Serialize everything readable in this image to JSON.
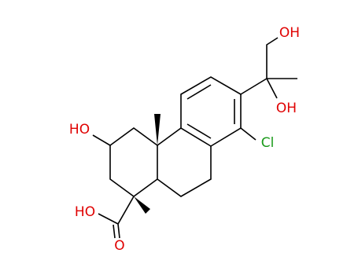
{
  "atoms": {
    "primary_hydroxyl": "OH",
    "tertiary_hydroxyl": "OH",
    "ring_hydroxyl": "HO",
    "chlorine": "Cl",
    "acid_hydroxyl": "HO",
    "carbonyl_oxygen": "O"
  }
}
